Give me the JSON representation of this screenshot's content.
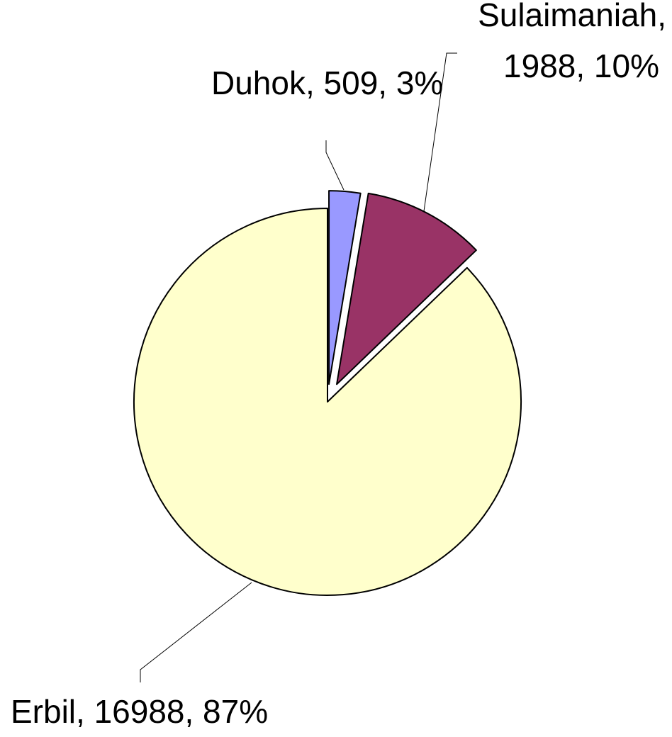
{
  "chart_data": {
    "type": "pie",
    "values": [
      509,
      1988,
      16988
    ],
    "value_labels": [
      "Duhok, 509, 3%",
      "Sulaimaniah, 1988, 10%",
      "Erbil, 16988, 87%"
    ],
    "colors": [
      "#9999ff",
      "#993366",
      "#ffffcc"
    ]
  }
}
